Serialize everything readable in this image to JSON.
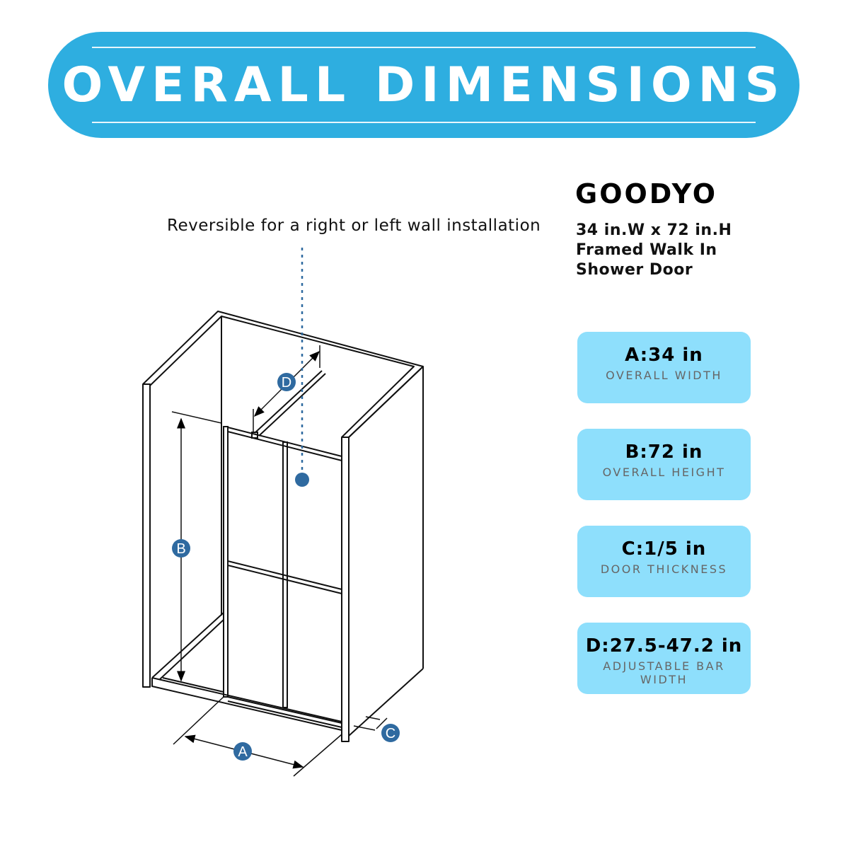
{
  "header": {
    "title": "OVERALL DIMENSIONS"
  },
  "note": "Reversible for a right or left wall installation",
  "product": {
    "brand": "GOODYO",
    "lines": [
      "34 in.W x 72 in.H",
      "Framed Walk In",
      "Shower Door"
    ]
  },
  "specs": [
    {
      "value": "A:34 in",
      "label": "OVERALL WIDTH"
    },
    {
      "value": "B:72 in",
      "label": "OVERALL HEIGHT"
    },
    {
      "value": "C:1/5 in",
      "label": "DOOR THICKNESS"
    },
    {
      "value": "D:27.5-47.2 in",
      "label": "ADJUSTABLE BAR WIDTH"
    }
  ],
  "diagram": {
    "markers": [
      "A",
      "B",
      "C",
      "D"
    ]
  },
  "colors": {
    "banner": "#2eaee0",
    "card": "#8edffc",
    "marker": "#2f6aa0"
  }
}
